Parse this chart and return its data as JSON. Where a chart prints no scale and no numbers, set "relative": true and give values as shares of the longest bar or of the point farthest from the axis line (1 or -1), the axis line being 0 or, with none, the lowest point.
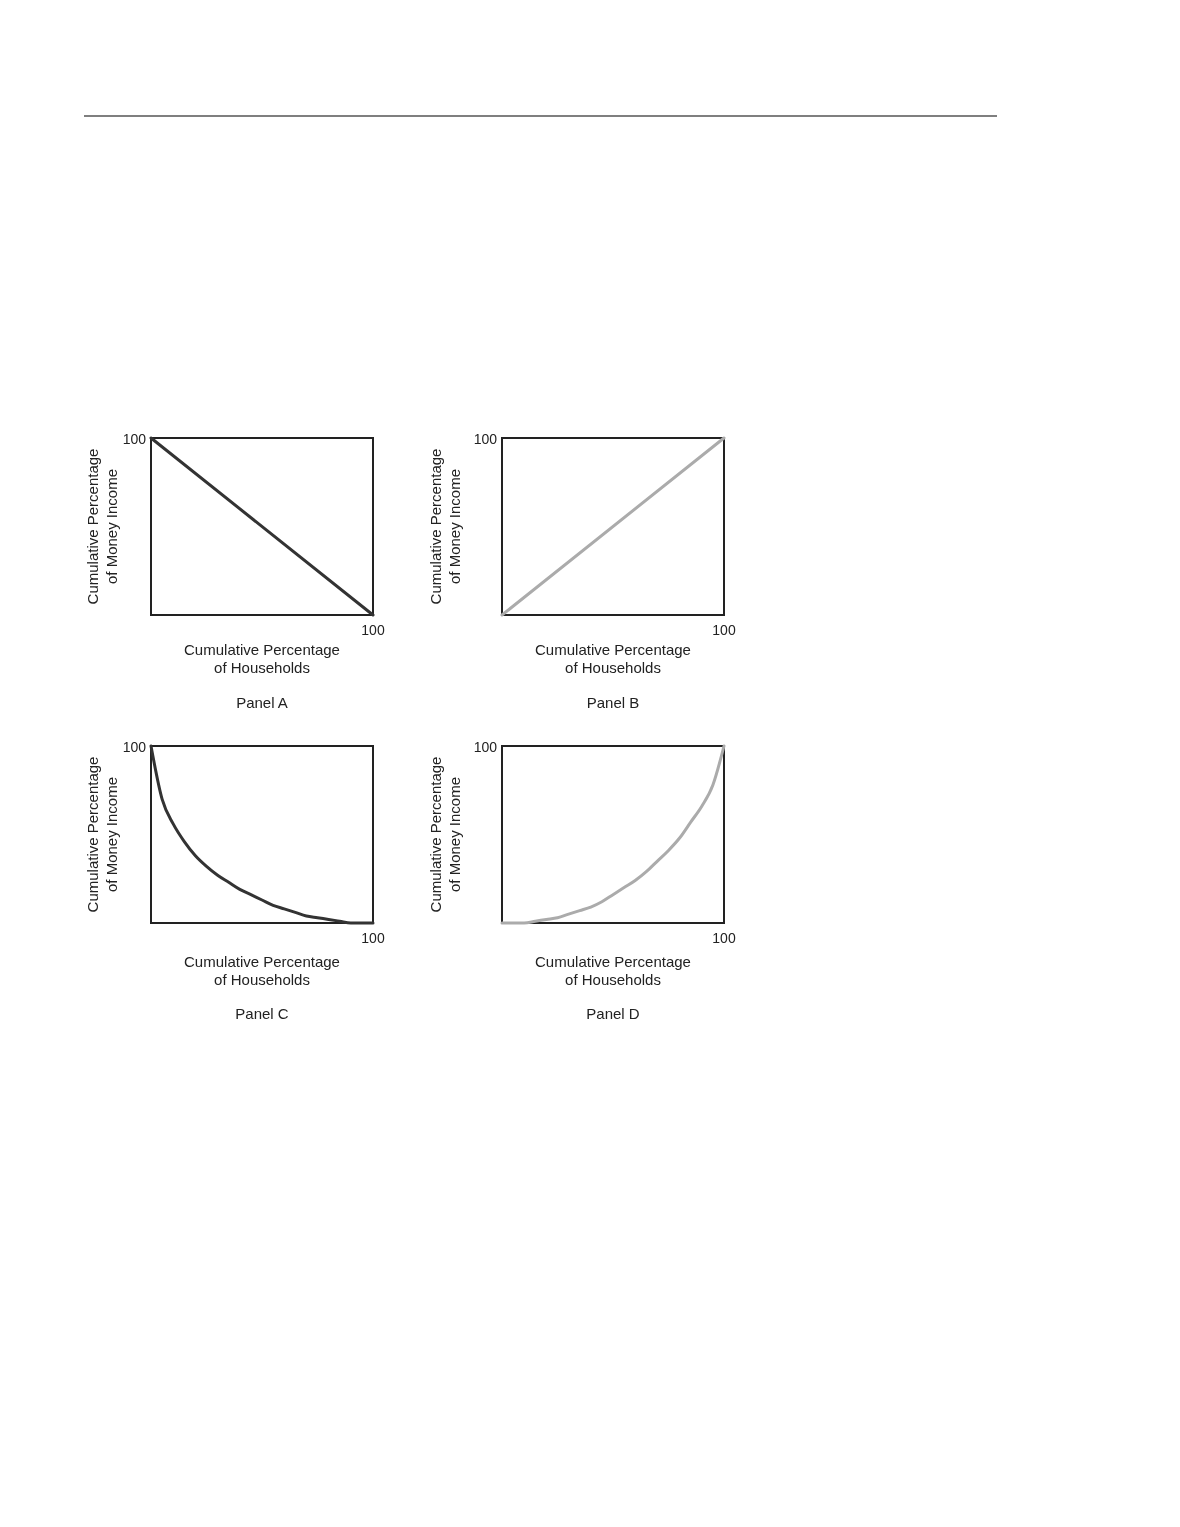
{
  "chart_data": [
    {
      "type": "line",
      "title": "Panel A",
      "xlabel": "Cumulative Percentage\nof Households",
      "ylabel": "Cumulative Percentage\nof Money Income",
      "relative": true,
      "categories": [
        null,
        null
      ],
      "series": [
        {
          "color": "#333333",
          "values": [
            1,
            0
          ]
        }
      ],
      "annotations": [
        "100",
        "100"
      ]
    },
    {
      "type": "line",
      "title": "Panel B",
      "xlabel": "Cumulative Percentage\nof Households",
      "ylabel": "Cumulative Percentage\nof Money Income",
      "relative": true,
      "categories": [
        null,
        null
      ],
      "series": [
        {
          "color": "#ababab",
          "values": [
            0,
            1
          ]
        }
      ],
      "annotations": [
        "100",
        "100"
      ]
    },
    {
      "type": "line",
      "title": "Panel C",
      "xlabel": "Cumulative Percentage\nof Households",
      "ylabel": "Cumulative Percentage\nof Money Income",
      "relative": true,
      "categories": [
        null,
        null,
        null,
        null,
        null,
        null,
        null,
        null,
        null,
        null,
        null,
        null,
        null,
        null,
        null,
        null,
        null,
        null,
        null,
        null,
        null
      ],
      "series": [
        {
          "color": "#333333",
          "values": [
            1,
            0.7,
            0.56,
            0.46,
            0.38,
            0.32,
            0.27,
            0.23,
            0.19,
            0.16,
            0.13,
            0.1,
            0.08,
            0.06,
            0.04,
            0.03,
            0.02,
            0.01,
            0,
            0,
            0
          ]
        }
      ],
      "annotations": [
        "100",
        "100"
      ]
    },
    {
      "type": "line",
      "title": "Panel D",
      "xlabel": "Cumulative Percentage\nof Households",
      "ylabel": "Cumulative Percentage\nof Money Income",
      "relative": true,
      "categories": [
        null,
        null,
        null,
        null,
        null,
        null,
        null,
        null,
        null,
        null,
        null,
        null,
        null,
        null,
        null,
        null,
        null,
        null,
        null,
        null,
        null
      ],
      "series": [
        {
          "color": "#ababab",
          "values": [
            0,
            0,
            0,
            0.01,
            0.02,
            0.03,
            0.05,
            0.07,
            0.09,
            0.12,
            0.16,
            0.2,
            0.24,
            0.29,
            0.35,
            0.41,
            0.48,
            0.57,
            0.66,
            0.78,
            1
          ]
        }
      ],
      "annotations": [
        "100",
        "100"
      ]
    }
  ]
}
